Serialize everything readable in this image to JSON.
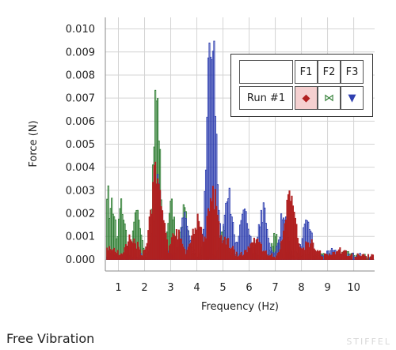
{
  "chart_data": {
    "type": "bar",
    "xlabel": "Frequency (Hz)",
    "ylabel": "Force (N)",
    "xlim": [
      0.5,
      10.8
    ],
    "ylim": [
      -0.0005,
      0.0105
    ],
    "x_ticks": [
      "1",
      "2",
      "3",
      "4",
      "5",
      "6",
      "7",
      "8",
      "9",
      "10"
    ],
    "y_ticks": [
      "0.000",
      "0.001",
      "0.002",
      "0.003",
      "0.004",
      "0.005",
      "0.006",
      "0.007",
      "0.008",
      "0.009",
      "0.010"
    ],
    "grid": true,
    "legend_position": "top-right",
    "series": [
      {
        "name": "F2",
        "color": "#2e7d32",
        "peaks": [
          [
            0.55,
            0.003
          ],
          [
            0.75,
            0.0022
          ],
          [
            1.1,
            0.0021
          ],
          [
            1.7,
            0.0022
          ],
          [
            2.45,
            0.007
          ],
          [
            3.0,
            0.0022
          ],
          [
            3.5,
            0.002
          ],
          [
            5.0,
            0.0012
          ],
          [
            7.0,
            0.001
          ],
          [
            9.7,
            0.0003
          ]
        ]
      },
      {
        "name": "F3",
        "color": "#3040b0",
        "peaks": [
          [
            2.5,
            0.003
          ],
          [
            3.5,
            0.0017
          ],
          [
            4.55,
            0.0104
          ],
          [
            5.2,
            0.0026
          ],
          [
            5.8,
            0.0022
          ],
          [
            6.5,
            0.002
          ],
          [
            7.3,
            0.0018
          ],
          [
            8.2,
            0.0015
          ],
          [
            9.2,
            0.0002
          ]
        ]
      },
      {
        "name": "F1",
        "color": "#b02020",
        "peaks": [
          [
            0.7,
            0.0004
          ],
          [
            1.5,
            0.0008
          ],
          [
            2.45,
            0.0039
          ],
          [
            3.2,
            0.001
          ],
          [
            4.0,
            0.0015
          ],
          [
            4.6,
            0.0028
          ],
          [
            5.1,
            0.0007
          ],
          [
            6.2,
            0.0008
          ],
          [
            7.55,
            0.0026
          ],
          [
            8.3,
            0.0006
          ],
          [
            9.5,
            0.0002
          ]
        ]
      }
    ]
  },
  "legend": {
    "run_label": "Run #1",
    "headers": [
      "F1",
      "F2",
      "F3"
    ],
    "markers": [
      {
        "series": "F1",
        "glyph": "◆",
        "color": "#b02020",
        "bg": "#f5d0d0"
      },
      {
        "series": "F2",
        "glyph": "⋈",
        "color": "#2e7d32",
        "bg": "#ffffff"
      },
      {
        "series": "F3",
        "glyph": "▼",
        "color": "#3040b0",
        "bg": "#ffffff"
      }
    ]
  },
  "caption": "Free Vibration",
  "watermark": "STIFFEL"
}
